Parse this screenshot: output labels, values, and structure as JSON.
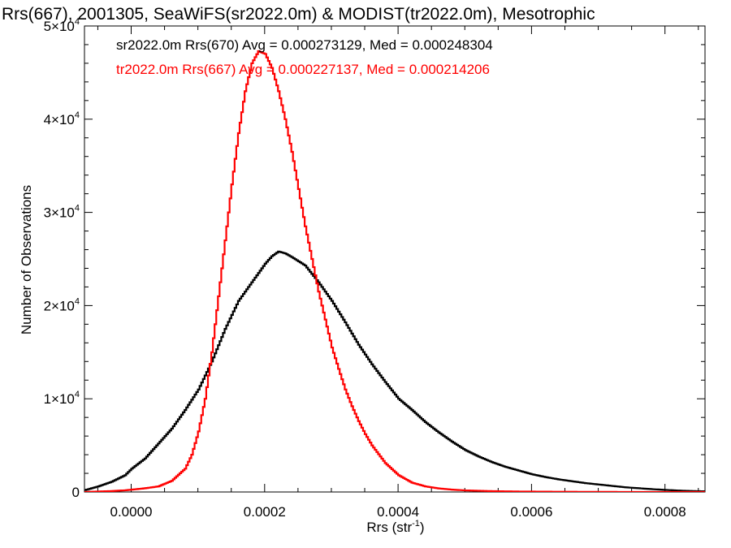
{
  "chart_data": {
    "type": "line",
    "title": "Rrs(667), 2001305, SeaWiFS(sr2022.0m) & MODIST(tr2022.0m), Mesotrophic",
    "xlabel": "Rrs (str",
    "xlabel_sup": "-1",
    "xlabel_close": ")",
    "ylabel": "Number of Observations",
    "xlim": [
      -7e-05,
      0.00086
    ],
    "ylim": [
      0,
      50000
    ],
    "x_ticks": [
      {
        "value": 0.0,
        "label": "0.0000"
      },
      {
        "value": 0.0002,
        "label": "0.0002"
      },
      {
        "value": 0.0004,
        "label": "0.0004"
      },
      {
        "value": 0.0006,
        "label": "0.0006"
      },
      {
        "value": 0.0008,
        "label": "0.0008"
      }
    ],
    "y_ticks": [
      {
        "value": 0,
        "base": "0",
        "exp": ""
      },
      {
        "value": 10000,
        "base": "1×10",
        "exp": "4"
      },
      {
        "value": 20000,
        "base": "2×10",
        "exp": "4"
      },
      {
        "value": 30000,
        "base": "3×10",
        "exp": "4"
      },
      {
        "value": 40000,
        "base": "4×10",
        "exp": "4"
      },
      {
        "value": 50000,
        "base": "5×10",
        "exp": "4"
      }
    ],
    "grid": false,
    "legend_position": "top-left",
    "series": [
      {
        "name": "sr2022.0m Rrs(670)  Avg = 0.000273129, Med = 0.000248304",
        "color": "#000000",
        "line_style": "step",
        "points": [
          [
            -7e-05,
            200
          ],
          [
            -5e-05,
            600
          ],
          [
            -3e-05,
            1100
          ],
          [
            -1e-05,
            1800
          ],
          [
            0.0,
            2500
          ],
          [
            2e-05,
            3600
          ],
          [
            4e-05,
            5200
          ],
          [
            6e-05,
            6800
          ],
          [
            8e-05,
            8800
          ],
          [
            0.0001,
            11000
          ],
          [
            0.00012,
            14000
          ],
          [
            0.00014,
            17500
          ],
          [
            0.00016,
            20500
          ],
          [
            0.00018,
            22500
          ],
          [
            0.0002,
            24500
          ],
          [
            0.00021,
            25300
          ],
          [
            0.00022,
            25800
          ],
          [
            0.00023,
            25600
          ],
          [
            0.00024,
            25200
          ],
          [
            0.00026,
            24300
          ],
          [
            0.00028,
            22500
          ],
          [
            0.0003,
            20500
          ],
          [
            0.00032,
            18200
          ],
          [
            0.00034,
            15800
          ],
          [
            0.00036,
            13700
          ],
          [
            0.00038,
            11800
          ],
          [
            0.0004,
            10000
          ],
          [
            0.00042,
            8800
          ],
          [
            0.00044,
            7500
          ],
          [
            0.00046,
            6400
          ],
          [
            0.00048,
            5400
          ],
          [
            0.0005,
            4500
          ],
          [
            0.00052,
            3800
          ],
          [
            0.00054,
            3200
          ],
          [
            0.00056,
            2700
          ],
          [
            0.00058,
            2300
          ],
          [
            0.0006,
            1900
          ],
          [
            0.00062,
            1600
          ],
          [
            0.00064,
            1350
          ],
          [
            0.00066,
            1150
          ],
          [
            0.00068,
            950
          ],
          [
            0.0007,
            800
          ],
          [
            0.00072,
            650
          ],
          [
            0.00074,
            500
          ],
          [
            0.00076,
            400
          ],
          [
            0.00078,
            300
          ],
          [
            0.0008,
            220
          ],
          [
            0.00082,
            150
          ],
          [
            0.00084,
            100
          ],
          [
            0.00086,
            70
          ]
        ]
      },
      {
        "name": "tr2022.0m Rrs(667)  Avg = 0.000227137, Med = 0.000214206",
        "color": "#ff0000",
        "line_style": "step",
        "points": [
          [
            -7e-05,
            0
          ],
          [
            -5e-05,
            50
          ],
          [
            -3e-05,
            100
          ],
          [
            -1e-05,
            180
          ],
          [
            0.0,
            250
          ],
          [
            2e-05,
            400
          ],
          [
            4e-05,
            600
          ],
          [
            6e-05,
            1200
          ],
          [
            8e-05,
            2500
          ],
          [
            9e-05,
            4000
          ],
          [
            0.0001,
            6500
          ],
          [
            0.00011,
            10000
          ],
          [
            0.00012,
            15000
          ],
          [
            0.00013,
            21000
          ],
          [
            0.00014,
            27000
          ],
          [
            0.00015,
            33000
          ],
          [
            0.00016,
            38500
          ],
          [
            0.00017,
            43000
          ],
          [
            0.00018,
            46000
          ],
          [
            0.00019,
            47300
          ],
          [
            0.0002,
            47000
          ],
          [
            0.00021,
            45500
          ],
          [
            0.00022,
            43000
          ],
          [
            0.00023,
            40000
          ],
          [
            0.00024,
            36500
          ],
          [
            0.00025,
            32500
          ],
          [
            0.00026,
            28500
          ],
          [
            0.00027,
            25000
          ],
          [
            0.00028,
            21500
          ],
          [
            0.00029,
            18500
          ],
          [
            0.0003,
            15500
          ],
          [
            0.00031,
            13200
          ],
          [
            0.00032,
            11000
          ],
          [
            0.00033,
            9200
          ],
          [
            0.00034,
            7600
          ],
          [
            0.00035,
            6200
          ],
          [
            0.00036,
            5000
          ],
          [
            0.00038,
            3100
          ],
          [
            0.0004,
            1800
          ],
          [
            0.00042,
            1000
          ],
          [
            0.00044,
            600
          ],
          [
            0.00046,
            380
          ],
          [
            0.00048,
            250
          ],
          [
            0.0005,
            170
          ],
          [
            0.00054,
            90
          ],
          [
            0.00058,
            50
          ],
          [
            0.00064,
            25
          ],
          [
            0.0007,
            10
          ],
          [
            0.0008,
            0
          ],
          [
            0.00086,
            0
          ]
        ]
      }
    ]
  }
}
